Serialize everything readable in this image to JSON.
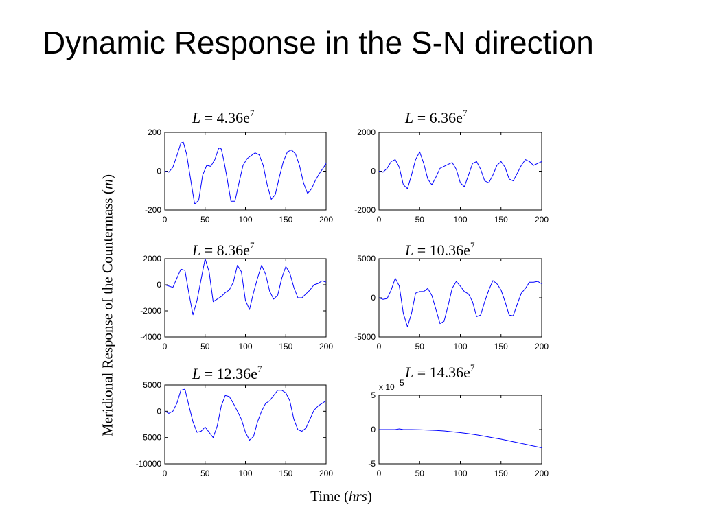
{
  "slide": {
    "title": "Dynamic Response in the S-N direction"
  },
  "figure": {
    "ylabel_main": "Meridional  Response of the Countermass (",
    "ylabel_unit": "m",
    "ylabel_close": ")",
    "xlabel_main": "Time (",
    "xlabel_unit": "hrs",
    "xlabel_close": ")",
    "line_color": "#0000ff"
  },
  "chart_data": [
    {
      "type": "line",
      "title_var": "L",
      "title_eq": " = ",
      "title_value": "4.36e",
      "title_exp": "7",
      "xlim": [
        0,
        200
      ],
      "ylim": [
        -200,
        200
      ],
      "xticks": [
        "0",
        "50",
        "100",
        "150",
        "200"
      ],
      "yticks": [
        "200",
        "0",
        "-200"
      ],
      "ytick_values": [
        200,
        0,
        -200
      ],
      "x": [
        0,
        5,
        10,
        15,
        20,
        23,
        27,
        32,
        37,
        42,
        47,
        52,
        57,
        62,
        67,
        70,
        73,
        77,
        82,
        87,
        92,
        97,
        102,
        107,
        112,
        117,
        122,
        127,
        132,
        137,
        142,
        147,
        152,
        157,
        162,
        167,
        172,
        177,
        182,
        187,
        192,
        197,
        200
      ],
      "y": [
        0,
        -5,
        20,
        80,
        145,
        150,
        90,
        -40,
        -170,
        -150,
        -20,
        30,
        25,
        60,
        120,
        115,
        60,
        -30,
        -155,
        -155,
        -60,
        30,
        65,
        80,
        95,
        85,
        30,
        -70,
        -145,
        -120,
        -30,
        50,
        100,
        110,
        90,
        30,
        -60,
        -115,
        -90,
        -45,
        -10,
        20,
        40
      ]
    },
    {
      "type": "line",
      "title_var": "L",
      "title_eq": " = ",
      "title_value": "6.36e",
      "title_exp": "7",
      "xlim": [
        0,
        200
      ],
      "ylim": [
        -2000,
        2000
      ],
      "xticks": [
        "0",
        "50",
        "100",
        "150",
        "200"
      ],
      "yticks": [
        "2000",
        "0",
        "-2000"
      ],
      "ytick_values": [
        2000,
        0,
        -2000
      ],
      "x": [
        0,
        5,
        10,
        15,
        20,
        25,
        30,
        35,
        40,
        45,
        50,
        55,
        60,
        65,
        70,
        75,
        80,
        85,
        90,
        95,
        100,
        105,
        110,
        115,
        120,
        125,
        130,
        135,
        140,
        145,
        150,
        155,
        160,
        165,
        170,
        175,
        180,
        185,
        190,
        195,
        200
      ],
      "y": [
        0,
        -50,
        150,
        500,
        600,
        200,
        -700,
        -900,
        -200,
        600,
        1000,
        400,
        -400,
        -700,
        -300,
        150,
        250,
        350,
        450,
        100,
        -600,
        -800,
        -200,
        400,
        500,
        100,
        -500,
        -600,
        -200,
        300,
        500,
        200,
        -400,
        -500,
        -100,
        300,
        600,
        500,
        300,
        400,
        500
      ]
    },
    {
      "type": "line",
      "title_var": "L",
      "title_eq": " = ",
      "title_value": "8.36e",
      "title_exp": "7",
      "xlim": [
        0,
        200
      ],
      "ylim": [
        -4000,
        2000
      ],
      "xticks": [
        "0",
        "50",
        "100",
        "150",
        "200"
      ],
      "yticks": [
        "2000",
        "0",
        "-2000",
        "-4000"
      ],
      "ytick_values": [
        2000,
        0,
        -2000,
        -4000
      ],
      "x": [
        0,
        5,
        10,
        15,
        20,
        25,
        30,
        35,
        40,
        45,
        50,
        55,
        60,
        65,
        70,
        75,
        80,
        85,
        90,
        95,
        100,
        105,
        110,
        115,
        120,
        125,
        130,
        135,
        140,
        145,
        150,
        155,
        160,
        165,
        170,
        175,
        180,
        185,
        190,
        195,
        200
      ],
      "y": [
        0,
        -100,
        -200,
        500,
        1200,
        1100,
        -700,
        -2300,
        -1200,
        400,
        2000,
        1000,
        -1300,
        -1100,
        -900,
        -600,
        -400,
        200,
        1500,
        1000,
        -1200,
        -1900,
        -600,
        500,
        1500,
        800,
        -500,
        -1100,
        -800,
        500,
        1400,
        900,
        -200,
        -1000,
        -1000,
        -700,
        -400,
        0,
        100,
        300,
        200
      ]
    },
    {
      "type": "line",
      "title_var": "L",
      "title_eq": " = ",
      "title_value": "10.36e",
      "title_exp": "7",
      "xlim": [
        0,
        200
      ],
      "ylim": [
        -5000,
        5000
      ],
      "xticks": [
        "0",
        "50",
        "100",
        "150",
        "200"
      ],
      "yticks": [
        "5000",
        "0",
        "-5000"
      ],
      "ytick_values": [
        5000,
        0,
        -5000
      ],
      "x": [
        0,
        5,
        10,
        15,
        20,
        25,
        30,
        35,
        40,
        45,
        50,
        55,
        60,
        65,
        70,
        75,
        80,
        85,
        90,
        95,
        100,
        105,
        110,
        115,
        120,
        125,
        130,
        135,
        140,
        145,
        150,
        155,
        160,
        165,
        170,
        175,
        180,
        185,
        190,
        195,
        200
      ],
      "y": [
        0,
        -200,
        -100,
        1000,
        2500,
        1500,
        -2000,
        -3700,
        -2000,
        600,
        800,
        800,
        1200,
        300,
        -1500,
        -3300,
        -3000,
        -1000,
        1200,
        2100,
        1500,
        800,
        500,
        -500,
        -2400,
        -2200,
        -500,
        1000,
        2200,
        1800,
        1000,
        -500,
        -2200,
        -2300,
        -800,
        600,
        1200,
        2000,
        2000,
        2100,
        1800
      ]
    },
    {
      "type": "line",
      "title_var": "L",
      "title_eq": " = ",
      "title_value": "12.36e",
      "title_exp": "7",
      "xlim": [
        0,
        200
      ],
      "ylim": [
        -10000,
        5000
      ],
      "xticks": [
        "0",
        "50",
        "100",
        "150",
        "200"
      ],
      "yticks": [
        "5000",
        "0",
        "-5000",
        "-10000"
      ],
      "ytick_values": [
        5000,
        0,
        -5000,
        -10000
      ],
      "x": [
        0,
        5,
        10,
        15,
        20,
        25,
        30,
        35,
        40,
        45,
        50,
        55,
        60,
        65,
        70,
        75,
        80,
        85,
        90,
        95,
        100,
        105,
        110,
        115,
        120,
        125,
        130,
        135,
        140,
        145,
        150,
        155,
        160,
        165,
        170,
        175,
        180,
        185,
        190,
        195,
        200
      ],
      "y": [
        0,
        -400,
        0,
        1500,
        4000,
        4200,
        1000,
        -2000,
        -4000,
        -3800,
        -3000,
        -4000,
        -5000,
        -2800,
        1000,
        3000,
        2800,
        1500,
        0,
        -1500,
        -4000,
        -5500,
        -4800,
        -2000,
        0,
        1500,
        2000,
        3000,
        4000,
        4000,
        3500,
        2000,
        -1500,
        -3500,
        -3800,
        -3200,
        -1500,
        200,
        1000,
        1500,
        2000
      ]
    },
    {
      "type": "line",
      "title_var": "L",
      "title_eq": " = ",
      "title_value": "14.36e",
      "title_exp": "7",
      "xlim": [
        0,
        200
      ],
      "ylim": [
        -500000,
        500000
      ],
      "xticks": [
        "0",
        "50",
        "100",
        "150",
        "200"
      ],
      "yticks": [
        "5",
        "0",
        "-5"
      ],
      "ytick_values": [
        500000,
        0,
        -500000
      ],
      "scale_label_main": "x 10",
      "scale_label_exp": "5",
      "x": [
        0,
        10,
        20,
        25,
        30,
        40,
        50,
        60,
        70,
        80,
        90,
        100,
        110,
        120,
        130,
        140,
        150,
        160,
        170,
        180,
        190,
        200
      ],
      "y": [
        0,
        0,
        0,
        10000,
        0,
        0,
        -3000,
        -7000,
        -12000,
        -20000,
        -32000,
        -45000,
        -60000,
        -78000,
        -98000,
        -120000,
        -140000,
        -165000,
        -190000,
        -215000,
        -240000,
        -265000
      ]
    }
  ]
}
